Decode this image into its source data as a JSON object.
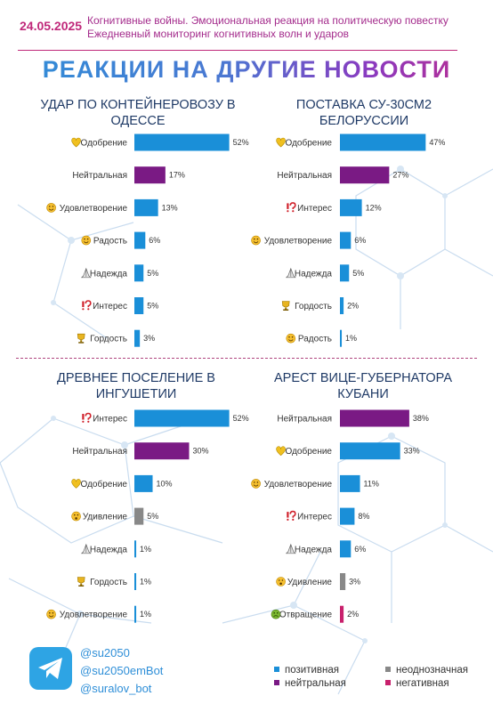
{
  "header": {
    "date": "24.05.2025",
    "subtitle_line1": "Когнитивные войны. Эмоциональная реакция на политическую повестку",
    "subtitle_line2": "Ежедневный мониторинг когнитивных волн и ударов"
  },
  "main_title": "РЕАКЦИИ НА ДРУГИЕ НОВОСТИ",
  "colors": {
    "positive": "#1a8fd8",
    "neutral": "#7a1a84",
    "ambiguous": "#888888",
    "negative": "#c8206c"
  },
  "legend": {
    "positive": "позитивная",
    "ambiguous": "неоднозначная",
    "neutral": "нейтральная",
    "negative": "негативная"
  },
  "footer": {
    "links": [
      "@su2050",
      "@su2050emBot",
      "@suralov_bot"
    ]
  },
  "chart_data": [
    {
      "type": "bar",
      "title": [
        "УДАР ПО КОНТЕЙНЕРОВОЗУ В",
        "ОДЕССЕ"
      ],
      "categories": [
        "Одобрение",
        "Нейтральная",
        "Удовлетворение",
        "Радость",
        "Надежда",
        "Интерес",
        "Гордость"
      ],
      "icons": [
        "heart-hands-icon",
        "",
        "smile-icon",
        "joy-icon",
        "praying-hands-icon",
        "exclamation-question-icon",
        "trophy-icon"
      ],
      "sentiment": [
        "positive",
        "neutral",
        "positive",
        "positive",
        "positive",
        "positive",
        "positive"
      ],
      "values": [
        52,
        17,
        13,
        6,
        5,
        5,
        3
      ],
      "value_labels": [
        "52%",
        "17%",
        "13%",
        "6%",
        "5%",
        "5%",
        "3%"
      ],
      "xlim": [
        0,
        60
      ]
    },
    {
      "type": "bar",
      "title": [
        "ПОСТАВКА СУ-30СМ2",
        "БЕЛОРУССИИ"
      ],
      "categories": [
        "Одобрение",
        "Нейтральная",
        "Интерес",
        "Удовлетворение",
        "Надежда",
        "Гордость",
        "Радость"
      ],
      "icons": [
        "heart-hands-icon",
        "",
        "exclamation-question-icon",
        "smile-icon",
        "praying-hands-icon",
        "trophy-icon",
        "joy-icon"
      ],
      "sentiment": [
        "positive",
        "neutral",
        "positive",
        "positive",
        "positive",
        "positive",
        "positive"
      ],
      "values": [
        47,
        27,
        12,
        6,
        5,
        2,
        1
      ],
      "value_labels": [
        "47%",
        "27%",
        "12%",
        "6%",
        "5%",
        "2%",
        "1%"
      ],
      "xlim": [
        0,
        60
      ]
    },
    {
      "type": "bar",
      "title": [
        "ДРЕВНЕЕ ПОСЕЛЕНИЕ В",
        "ИНГУШЕТИИ"
      ],
      "categories": [
        "Интерес",
        "Нейтральная",
        "Одобрение",
        "Удивление",
        "Надежда",
        "Гордость",
        "Удовлетворение"
      ],
      "icons": [
        "exclamation-question-icon",
        "",
        "heart-hands-icon",
        "surprise-icon",
        "praying-hands-icon",
        "trophy-icon",
        "smile-icon"
      ],
      "sentiment": [
        "positive",
        "neutral",
        "positive",
        "ambiguous",
        "positive",
        "positive",
        "positive"
      ],
      "values": [
        52,
        30,
        10,
        5,
        1,
        1,
        1
      ],
      "value_labels": [
        "52%",
        "30%",
        "10%",
        "5%",
        "1%",
        "1%",
        "1%"
      ],
      "xlim": [
        0,
        60
      ]
    },
    {
      "type": "bar",
      "title": [
        "АРЕСТ ВИЦЕ-ГУБЕРНАТОРА",
        "КУБАНИ"
      ],
      "categories": [
        "Нейтральная",
        "Одобрение",
        "Удовлетворение",
        "Интерес",
        "Надежда",
        "Удивление",
        "Отвращение"
      ],
      "icons": [
        "",
        "heart-hands-icon",
        "smile-icon",
        "exclamation-question-icon",
        "praying-hands-icon",
        "surprise-icon",
        "disgust-icon"
      ],
      "sentiment": [
        "neutral",
        "positive",
        "positive",
        "positive",
        "positive",
        "ambiguous",
        "negative"
      ],
      "values": [
        38,
        33,
        11,
        8,
        6,
        3,
        2
      ],
      "value_labels": [
        "38%",
        "33%",
        "11%",
        "8%",
        "6%",
        "3%",
        "2%"
      ],
      "xlim": [
        0,
        60
      ]
    }
  ]
}
